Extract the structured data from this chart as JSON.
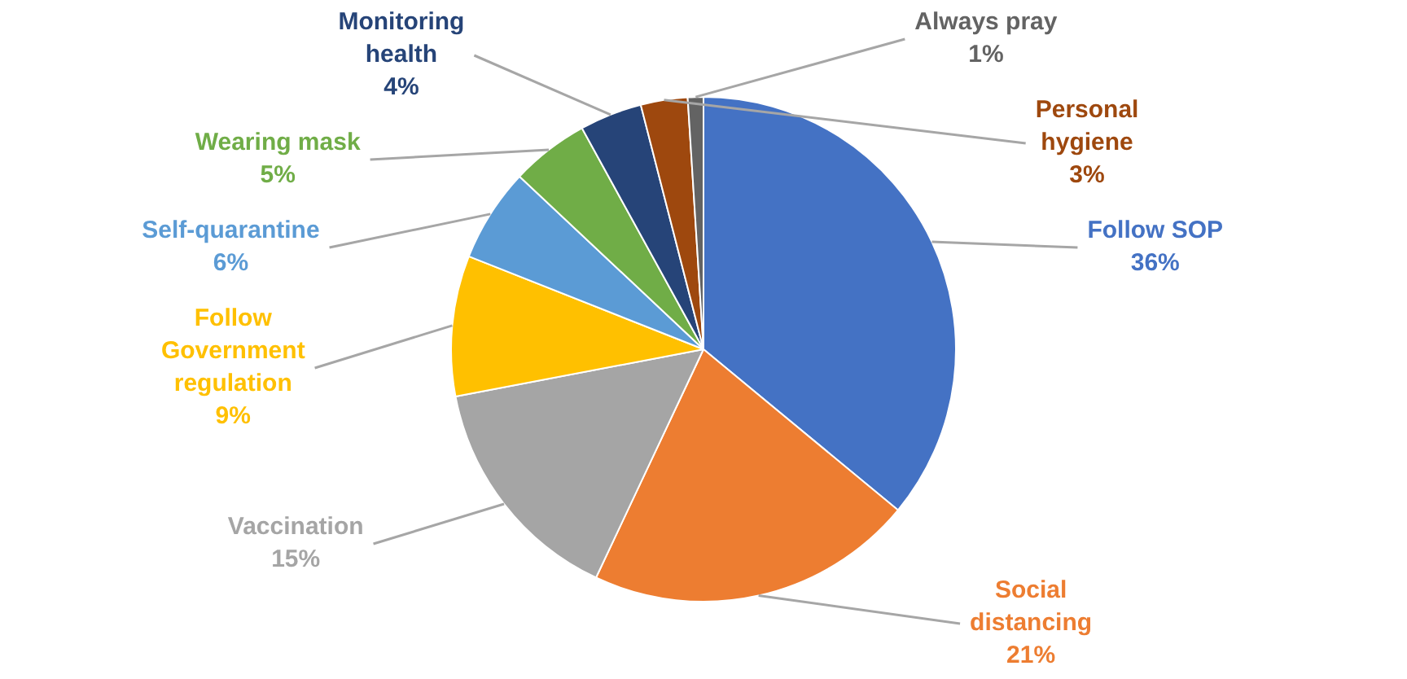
{
  "chart_data": {
    "type": "pie",
    "categories": [
      "Follow SOP",
      "Social distancing",
      "Vaccination",
      "Follow Government regulation",
      "Self-quarantine",
      "Wearing mask",
      "Monitoring health",
      "Personal hygiene",
      "Always pray"
    ],
    "values": [
      36,
      21,
      15,
      9,
      6,
      5,
      4,
      3,
      1
    ],
    "colors": [
      "#4472c4",
      "#ed7d31",
      "#a5a5a5",
      "#ffc000",
      "#5b9bd5",
      "#70ad47",
      "#264478",
      "#9e480e",
      "#636363"
    ],
    "value_labels": [
      "36%",
      "21%",
      "15%",
      "9%",
      "6%",
      "5%",
      "4%",
      "3%",
      "1%"
    ]
  }
}
